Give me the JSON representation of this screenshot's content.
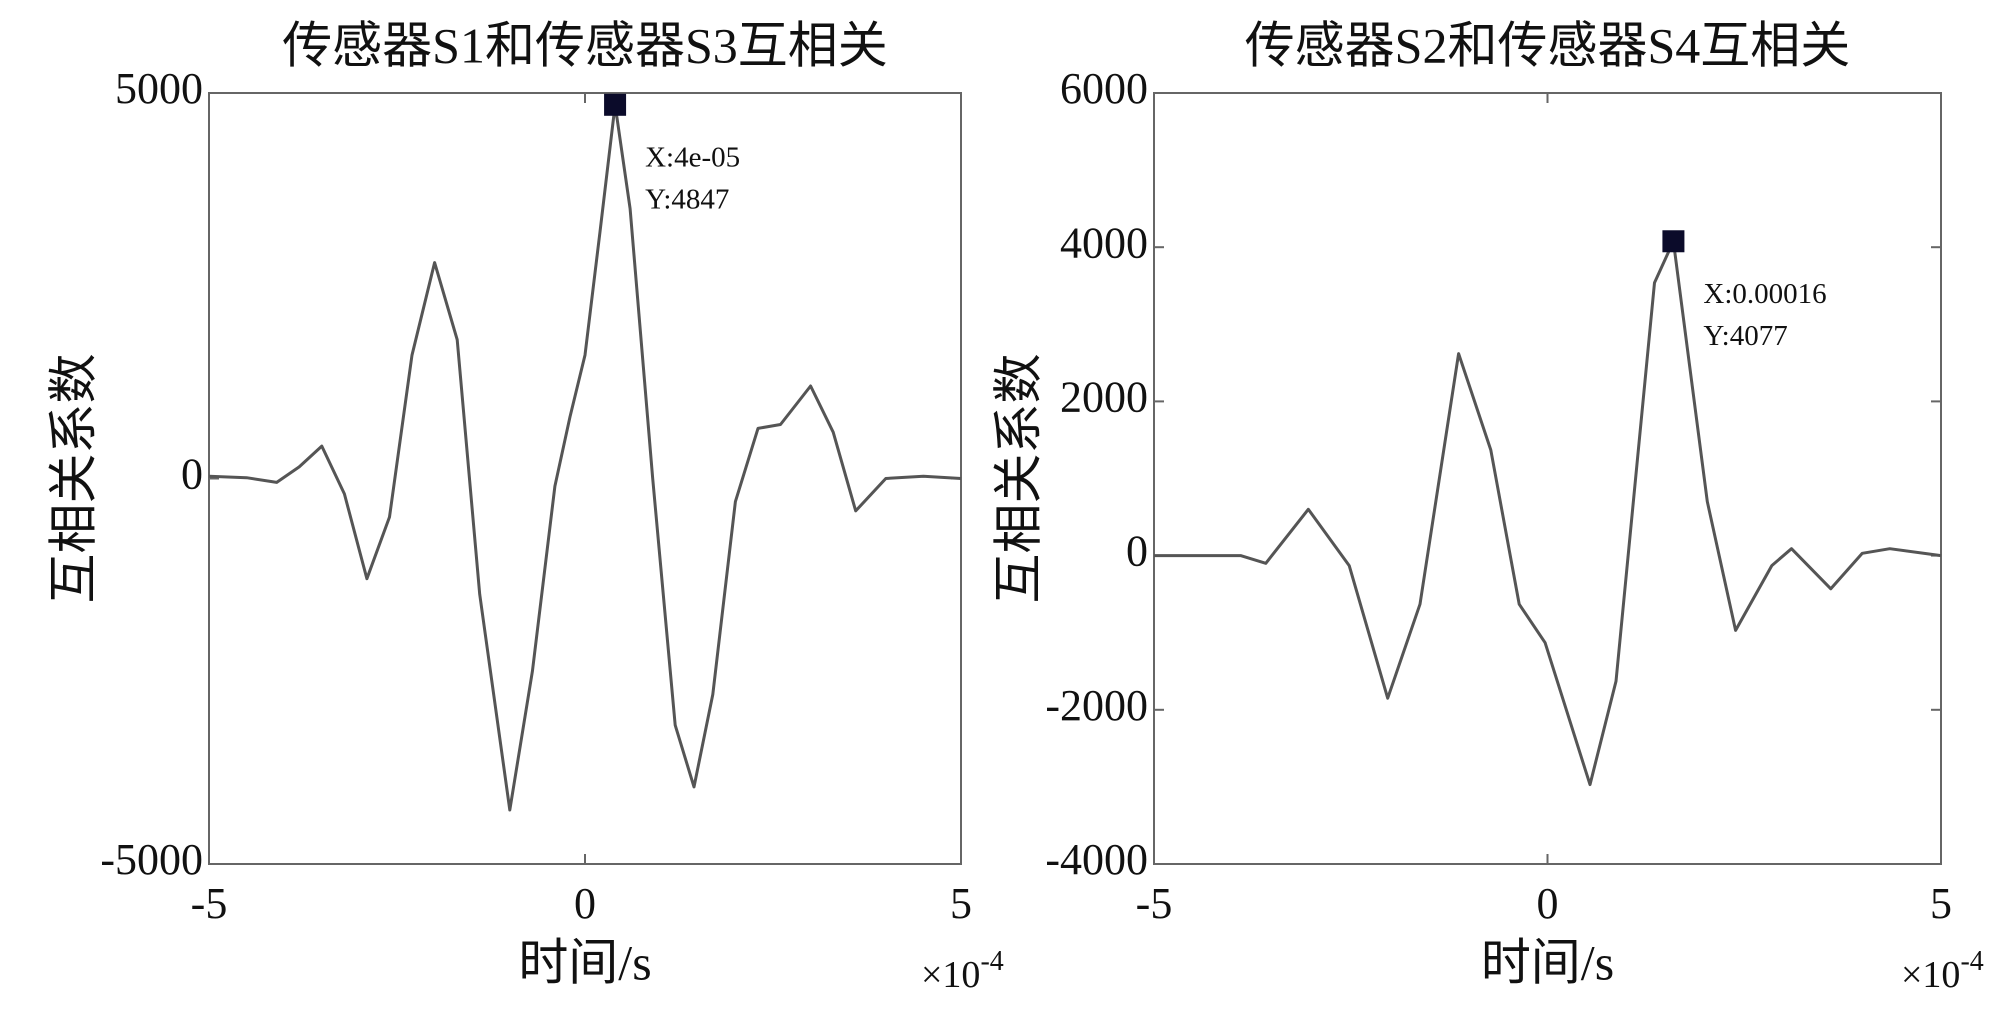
{
  "chart_data": [
    {
      "type": "line",
      "title": "传感器S1和传感器S3互相关",
      "xlabel": "时间/s",
      "ylabel": "互相关系数",
      "x_scale": {
        "base": "×10",
        "exponent": "-4"
      },
      "x": [
        -5,
        -4.5,
        -4.1,
        -3.8,
        -3.5,
        -3.2,
        -2.9,
        -2.6,
        -2.3,
        -2.0,
        -1.7,
        -1.4,
        -1.0,
        -0.7,
        -0.4,
        -0.2,
        0,
        0.2,
        0.4,
        0.6,
        0.9,
        1.2,
        1.45,
        1.7,
        2.0,
        2.3,
        2.6,
        3.0,
        3.3,
        3.6,
        4.0,
        4.5,
        5
      ],
      "series": [
        {
          "color": "#555555",
          "values": [
            30,
            10,
            -50,
            150,
            420,
            -200,
            -1300,
            -500,
            1600,
            2800,
            1800,
            -1500,
            -4300,
            -2500,
            -100,
            800,
            1600,
            3200,
            4847,
            3500,
            0,
            -3200,
            -4000,
            -2800,
            -300,
            650,
            700,
            1200,
            600,
            -420,
            0,
            30,
            0
          ]
        }
      ],
      "xlim": [
        -5,
        5
      ],
      "xticks": [
        -5,
        0,
        5
      ],
      "ylim": [
        -5000,
        5000
      ],
      "yticks": [
        -5000,
        0,
        5000
      ],
      "highlight": {
        "x": 0.4,
        "y": 4847,
        "labels": [
          "X:4e-05",
          "Y:4847"
        ]
      }
    },
    {
      "type": "line",
      "title": "传感器S2和传感器S4互相关",
      "xlabel": "时间/s",
      "ylabel": "互相关系数",
      "x_scale": {
        "base": "×10",
        "exponent": "-4"
      },
      "x": [
        -5,
        -3.9,
        -3.58,
        -3.04,
        -2.52,
        -2.03,
        -1.62,
        -1.13,
        -0.72,
        -0.36,
        -0.03,
        0.54,
        0.87,
        1.36,
        1.6,
        2.03,
        2.39,
        2.85,
        3.1,
        3.6,
        4.0,
        4.35,
        5
      ],
      "series": [
        {
          "color": "#555555",
          "values": [
            0,
            0,
            -100,
            600,
            -130,
            -1850,
            -630,
            2620,
            1370,
            -630,
            -1130,
            -2970,
            -1630,
            3540,
            4077,
            700,
            -970,
            -130,
            90,
            -430,
            30,
            90,
            0
          ]
        }
      ],
      "xlim": [
        -5,
        5
      ],
      "xticks": [
        -5,
        0,
        5
      ],
      "ylim": [
        -4000,
        6000
      ],
      "yticks": [
        -4000,
        -2000,
        0,
        2000,
        4000,
        6000
      ],
      "highlight": {
        "x": 1.6,
        "y": 4077,
        "labels": [
          "X:0.00016",
          "Y:4077"
        ]
      }
    }
  ]
}
